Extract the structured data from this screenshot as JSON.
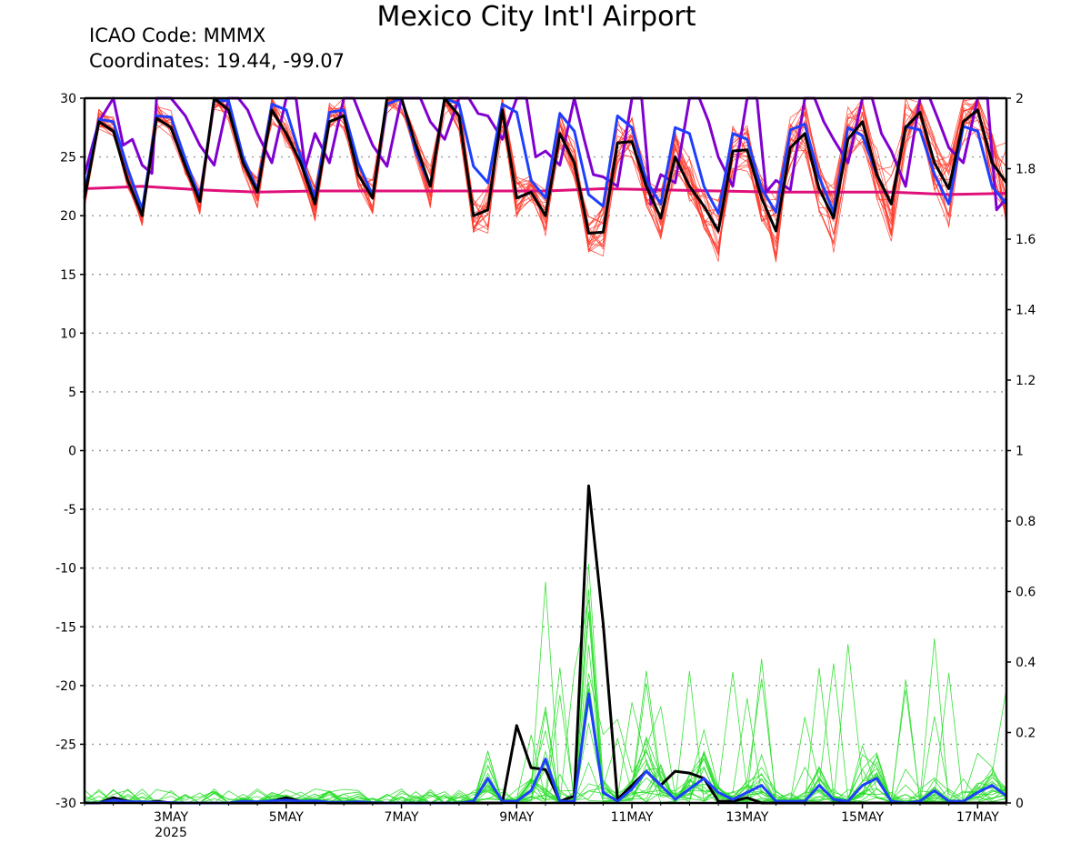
{
  "header": {
    "title": "Mexico City Int'l Airport",
    "icao_line": "ICAO Code: MMMX",
    "coords_line": "Coordinates: 19.44, -99.07"
  },
  "chart_data": {
    "type": "line",
    "title": "Mexico City Int'l Airport",
    "left_axis": {
      "ylim": [
        -30,
        30
      ],
      "ticks": [
        30,
        25,
        20,
        15,
        10,
        5,
        0,
        -5,
        -10,
        -15,
        -20,
        -25,
        -30
      ]
    },
    "right_axis": {
      "ylim": [
        0,
        2
      ],
      "ticks": [
        {
          "v": 2,
          "label": "2"
        },
        {
          "v": 1.8,
          "label": "1.8"
        },
        {
          "v": 1.6,
          "label": "1.6"
        },
        {
          "v": 1.4,
          "label": "1.4"
        },
        {
          "v": 1.2,
          "label": "1.2"
        },
        {
          "v": 1,
          "label": "1"
        },
        {
          "v": 0.8,
          "label": "0.8"
        },
        {
          "v": 0.6,
          "label": "0.6"
        },
        {
          "v": 0.4,
          "label": "0.4"
        },
        {
          "v": 0.2,
          "label": "0.2"
        },
        {
          "v": 0,
          "label": "0"
        }
      ]
    },
    "x_range_days": [
      1.5,
      17.5
    ],
    "x_ticks": [
      {
        "day": 3,
        "label": "3MAY",
        "sub": "2025"
      },
      {
        "day": 5,
        "label": "5MAY",
        "sub": ""
      },
      {
        "day": 7,
        "label": "7MAY",
        "sub": ""
      },
      {
        "day": 9,
        "label": "9MAY",
        "sub": ""
      },
      {
        "day": 11,
        "label": "11MAY",
        "sub": ""
      },
      {
        "day": 13,
        "label": "13MAY",
        "sub": ""
      },
      {
        "day": 15,
        "label": "15MAY",
        "sub": ""
      },
      {
        "day": 17,
        "label": "17MAY",
        "sub": ""
      }
    ],
    "grid": "dotted horizontal",
    "colors": {
      "black": "#000000",
      "blue": "#1f3fff",
      "purple": "#8000d0",
      "magenta": "#e0107a",
      "red_members": "#ff3a2a",
      "green_members": "#22dd22"
    },
    "series": [
      {
        "role": "temperature control",
        "color": "#000000",
        "width": 3,
        "axis": "left",
        "x_day": [
          1.5,
          1.75,
          2,
          2.25,
          2.5,
          2.75,
          3,
          3.25,
          3.5,
          3.75,
          4,
          4.25,
          4.5,
          4.75,
          5,
          5.25,
          5.5,
          5.75,
          6,
          6.25,
          6.5,
          6.75,
          7,
          7.25,
          7.5,
          7.75,
          8,
          8.25,
          8.5,
          8.75,
          9,
          9.25,
          9.5,
          9.75,
          10,
          10.25,
          10.5,
          10.75,
          11,
          11.25,
          11.5,
          11.75,
          12,
          12.25,
          12.5,
          12.75,
          13,
          13.25,
          13.5,
          13.75,
          14,
          14.25,
          14.5,
          14.75,
          15,
          15.25,
          15.5,
          15.75,
          16,
          16.25,
          16.5,
          16.75,
          17,
          17.25,
          17.5
        ],
        "values": [
          21.5,
          28,
          27.2,
          23,
          20,
          28.3,
          27.5,
          24.2,
          21.2,
          30,
          29,
          24.5,
          22,
          29,
          27,
          24.5,
          21,
          28,
          28.5,
          23.5,
          21.5,
          30,
          30,
          26,
          22.5,
          30,
          28.5,
          20,
          20.5,
          29,
          21.5,
          22,
          20,
          27,
          24.5,
          18.5,
          18.6,
          26.2,
          26.3,
          22.5,
          19.8,
          25,
          22.5,
          20.8,
          18.7,
          25.5,
          25.6,
          21.5,
          18.7,
          25.8,
          27,
          22.3,
          19.8,
          26.5,
          28,
          23.5,
          21,
          27.5,
          28.8,
          24.5,
          22.3,
          28,
          29,
          24.5,
          22.8
        ]
      },
      {
        "role": "temperature mean",
        "color": "#1f3fff",
        "width": 3,
        "axis": "left",
        "x_day": [
          1.5,
          1.75,
          2,
          2.25,
          2.5,
          2.75,
          3,
          3.25,
          3.5,
          3.75,
          4,
          4.25,
          4.5,
          4.75,
          5,
          5.25,
          5.5,
          5.75,
          6,
          6.25,
          6.5,
          6.75,
          7,
          7.25,
          7.5,
          7.75,
          8,
          8.25,
          8.5,
          8.75,
          9,
          9.25,
          9.5,
          9.75,
          10,
          10.25,
          10.5,
          10.75,
          11,
          11.25,
          11.5,
          11.75,
          12,
          12.25,
          12.5,
          12.75,
          13,
          13.25,
          13.5,
          13.75,
          14,
          14.25,
          14.5,
          14.75,
          15,
          15.25,
          15.5,
          15.75,
          16,
          16.25,
          16.5,
          16.75,
          17,
          17.25,
          17.5
        ],
        "values": [
          22,
          28.2,
          28,
          24,
          20.5,
          28.5,
          28.4,
          24.8,
          21.5,
          29.8,
          29.8,
          25,
          22.2,
          29.5,
          29,
          25,
          21.5,
          28.8,
          29,
          24.5,
          21.7,
          29.5,
          30,
          25.5,
          22.5,
          30,
          29.5,
          24.2,
          22.8,
          29.5,
          28.8,
          23,
          21.5,
          28.7,
          27.2,
          21.8,
          20.8,
          28.5,
          27.5,
          23,
          21,
          27.5,
          27,
          22.5,
          20.2,
          27,
          26.5,
          22.3,
          20.3,
          27.3,
          27.8,
          23.3,
          20.3,
          27.5,
          26.8,
          23.5,
          21,
          27.6,
          27.3,
          23.5,
          21,
          27.6,
          27.2,
          22.5,
          21
        ]
      },
      {
        "role": "temperature extra",
        "color": "#8000d0",
        "width": 3,
        "axis": "left",
        "x_day": [
          1.5,
          1.75,
          2,
          2.17,
          2.33,
          2.5,
          2.67,
          2.75,
          3,
          3.25,
          3.5,
          3.75,
          4,
          4.17,
          4.33,
          4.5,
          4.75,
          5,
          5.17,
          5.33,
          5.5,
          5.75,
          6,
          6.17,
          6.33,
          6.5,
          6.75,
          7,
          7.17,
          7.33,
          7.5,
          7.75,
          8,
          8.17,
          8.33,
          8.5,
          8.75,
          9,
          9.17,
          9.33,
          9.5,
          9.75,
          10,
          10.17,
          10.33,
          10.5,
          10.75,
          11,
          11.17,
          11.33,
          11.5,
          11.75,
          12,
          12.17,
          12.33,
          12.5,
          12.75,
          13,
          13.17,
          13.33,
          13.5,
          13.75,
          14,
          14.17,
          14.33,
          14.5,
          14.75,
          15,
          15.17,
          15.33,
          15.5,
          15.75,
          16,
          16.17,
          16.33,
          16.5,
          16.75,
          17,
          17.17,
          17.33,
          17.5
        ],
        "values": [
          23.5,
          28,
          30,
          26,
          26.5,
          24.3,
          23.6,
          30,
          30,
          28.5,
          26,
          24.3,
          30,
          30,
          29,
          27,
          24.5,
          30,
          30,
          24,
          27,
          24.5,
          30,
          30,
          28,
          26,
          24.2,
          30,
          30,
          30,
          28,
          26.5,
          30,
          30,
          28.7,
          28.5,
          26.5,
          30,
          30,
          25,
          25.5,
          24.3,
          30,
          26.5,
          23.5,
          23.3,
          22.5,
          30,
          30,
          21,
          23.5,
          22.8,
          30,
          30,
          28,
          25,
          22.5,
          30,
          30,
          22,
          23,
          22.2,
          30,
          30,
          28,
          26.5,
          24.5,
          30,
          30,
          27,
          25.5,
          22.5,
          30,
          30,
          28,
          25.8,
          24.5,
          30,
          30,
          20.5,
          21.5
        ]
      },
      {
        "role": "climatology",
        "color": "#e0107a",
        "width": 3,
        "axis": "left",
        "x_day": [
          1.5,
          2.5,
          3.5,
          4.5,
          5.5,
          6.5,
          7.5,
          8.5,
          9.5,
          10.5,
          11.5,
          12.5,
          13.5,
          14.5,
          15.5,
          16.5,
          17.5
        ],
        "values": [
          22.3,
          22.5,
          22.2,
          22,
          22.1,
          22.1,
          22.1,
          22.1,
          22.1,
          22.3,
          22.2,
          22.1,
          22,
          22,
          22,
          21.8,
          21.9
        ]
      },
      {
        "role": "precipitation control",
        "color": "#000000",
        "width": 3,
        "axis": "right",
        "x_day": [
          1.5,
          1.75,
          2,
          2.25,
          2.5,
          2.75,
          3,
          3.25,
          3.5,
          3.75,
          4,
          4.25,
          4.5,
          4.75,
          5,
          5.25,
          5.5,
          5.75,
          6,
          6.25,
          6.5,
          6.75,
          7,
          7.25,
          7.5,
          7.75,
          8,
          8.25,
          8.5,
          8.75,
          9,
          9.25,
          9.5,
          9.75,
          10,
          10.25,
          10.5,
          10.75,
          11,
          11.25,
          11.5,
          11.75,
          12,
          12.25,
          12.5,
          12.75,
          13,
          13.25,
          13.5,
          13.75,
          14,
          14.25,
          14.5,
          14.75,
          15,
          15.25,
          15.5,
          15.75,
          16,
          16.25,
          16.5,
          16.75,
          17,
          17.25,
          17.5
        ],
        "values": [
          0,
          0,
          0.015,
          0.005,
          0,
          0.005,
          0,
          0,
          0,
          0,
          0,
          0,
          0,
          0.005,
          0.015,
          0.005,
          0.003,
          0,
          0,
          0,
          0,
          0,
          0,
          0,
          0,
          0,
          0,
          0,
          0,
          0,
          0.22,
          0.1,
          0.095,
          0.005,
          0.02,
          0.9,
          0.51,
          0.01,
          0.05,
          0.09,
          0.05,
          0.09,
          0.085,
          0.07,
          0.005,
          0.005,
          0.015,
          0,
          0,
          0,
          0,
          0,
          0,
          0,
          0,
          0,
          0,
          0,
          0,
          0,
          0,
          0,
          0,
          0,
          0
        ]
      },
      {
        "role": "precipitation mean",
        "color": "#1f3fff",
        "width": 3,
        "axis": "right",
        "x_day": [
          1.5,
          1.75,
          2,
          2.25,
          2.5,
          2.75,
          3,
          3.25,
          3.5,
          3.75,
          4,
          4.25,
          4.5,
          4.75,
          5,
          5.25,
          5.5,
          5.75,
          6,
          6.25,
          6.5,
          6.75,
          7,
          7.25,
          7.5,
          7.75,
          8,
          8.25,
          8.5,
          8.75,
          9,
          9.25,
          9.5,
          9.75,
          10,
          10.25,
          10.5,
          10.75,
          11,
          11.25,
          11.5,
          11.75,
          12,
          12.25,
          12.5,
          12.75,
          13,
          13.25,
          13.5,
          13.75,
          14,
          14.25,
          14.5,
          14.75,
          15,
          15.25,
          15.5,
          15.75,
          16,
          16.25,
          16.5,
          16.75,
          17,
          17.25,
          17.5
        ],
        "values": [
          0,
          0,
          0.008,
          0.004,
          0.003,
          0.002,
          0.001,
          0,
          0,
          0,
          0,
          0.005,
          0.003,
          0.006,
          0.008,
          0.005,
          0.006,
          0.002,
          0.002,
          0.003,
          0.001,
          0,
          0,
          0,
          0,
          0,
          0,
          0.005,
          0.07,
          0.005,
          0.005,
          0.035,
          0.125,
          0.005,
          0.005,
          0.31,
          0.03,
          0.005,
          0.04,
          0.09,
          0.05,
          0.01,
          0.04,
          0.07,
          0.03,
          0.01,
          0.03,
          0.05,
          0.005,
          0.005,
          0.005,
          0.05,
          0.01,
          0.005,
          0.05,
          0.07,
          0.005,
          0,
          0.005,
          0.035,
          0.005,
          0.005,
          0.03,
          0.05,
          0.02
        ]
      }
    ]
  }
}
